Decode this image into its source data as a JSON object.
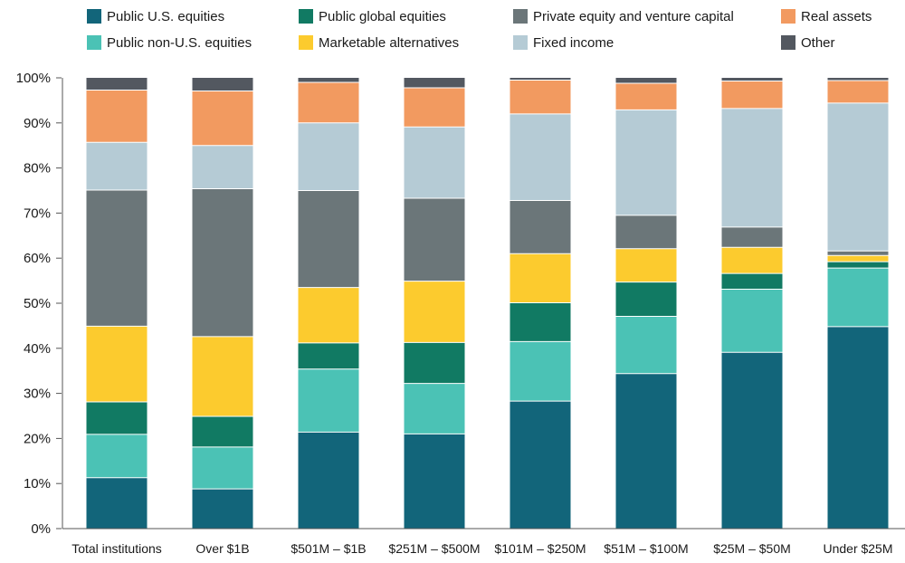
{
  "chart_data": {
    "type": "bar",
    "stacked": true,
    "normalized": true,
    "title": "",
    "xlabel": "",
    "ylabel": "",
    "ylim": [
      0,
      100
    ],
    "yticks": [
      "0%",
      "10%",
      "20%",
      "30%",
      "40%",
      "50%",
      "60%",
      "70%",
      "80%",
      "90%",
      "100%"
    ],
    "grid": false,
    "legend_position": "top",
    "categories": [
      "Total institutions",
      "Over $1B",
      "$501M – $1B",
      "$251M – $500M",
      "$101M – $250M",
      "$51M – $100M",
      "$25M – $50M",
      "Under $25M"
    ],
    "series": [
      {
        "name": "Public U.S. equities",
        "color": "#12657a",
        "values": [
          11.3,
          8.8,
          21.4,
          21.0,
          28.3,
          34.4,
          39.1,
          44.8
        ]
      },
      {
        "name": "Public non-U.S. equities",
        "color": "#4bc2b5",
        "values": [
          9.6,
          9.3,
          14.0,
          11.2,
          13.2,
          12.7,
          14.0,
          13.0
        ]
      },
      {
        "name": "Public global equities",
        "color": "#117a63",
        "values": [
          7.2,
          6.8,
          5.8,
          9.1,
          8.6,
          7.6,
          3.5,
          1.4
        ]
      },
      {
        "name": "Marketable alternatives",
        "color": "#fccb2e",
        "values": [
          16.8,
          17.7,
          12.3,
          13.6,
          10.9,
          7.4,
          5.8,
          1.4
        ]
      },
      {
        "name": "Private equity and venture capital",
        "color": "#6b7679",
        "values": [
          30.2,
          32.8,
          21.5,
          18.4,
          11.8,
          7.4,
          4.5,
          1.0
        ]
      },
      {
        "name": "Fixed income",
        "color": "#b5cbd5",
        "values": [
          10.6,
          9.6,
          15.0,
          15.8,
          19.2,
          23.4,
          26.3,
          32.8
        ]
      },
      {
        "name": "Real assets",
        "color": "#f29a60",
        "values": [
          11.6,
          12.1,
          9.0,
          8.7,
          7.5,
          5.9,
          6.1,
          5.0
        ]
      },
      {
        "name": "Other",
        "color": "#535860",
        "values": [
          2.7,
          2.9,
          1.0,
          2.2,
          0.5,
          1.2,
          0.7,
          0.6
        ]
      }
    ],
    "legend_order": [
      "Public U.S. equities",
      "Public global equities",
      "Private equity and venture capital",
      "Real assets",
      "Public non-U.S. equities",
      "Marketable alternatives",
      "Fixed income",
      "Other"
    ]
  }
}
